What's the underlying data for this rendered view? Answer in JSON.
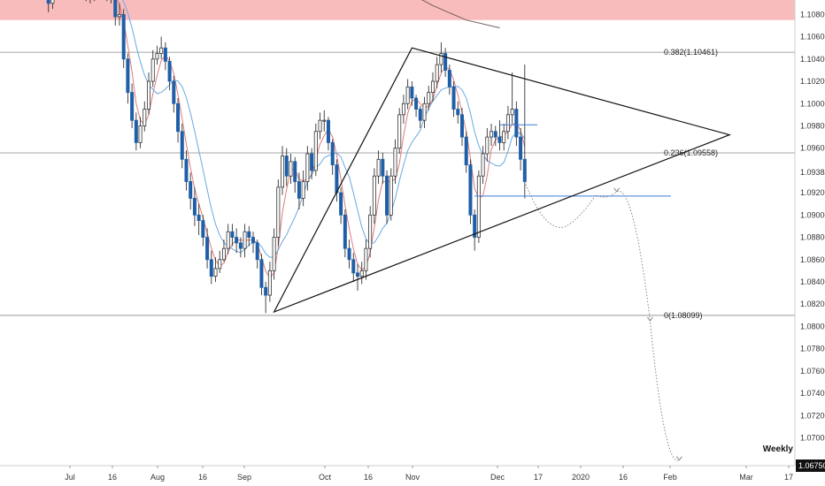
{
  "colors": {
    "bull_body": "#ffffff",
    "bear_body": "#1f5fa8",
    "wick": "#333333",
    "fast_ma": "#e07a7a",
    "slow_ma": "#6aa8e0",
    "long_ma": "#7a5a5a",
    "resistance_zone": "#f8bcbc",
    "fib_line": "#888888",
    "blue_line": "#3b7dd8",
    "triangle": "#111111",
    "projection": "#888888",
    "badge_bg": "#111111"
  },
  "chart_data": {
    "type": "candlestick",
    "timeframe_label": "Weekly",
    "current_price_label": "1.06750",
    "x_ticks": [
      "Jul",
      "16",
      "Aug",
      "16",
      "Sep",
      "Oct",
      "16",
      "Nov",
      "Dec",
      "17",
      "2020",
      "16",
      "Feb",
      "Mar",
      "17"
    ],
    "y_ticks": [
      "1.10800",
      "1.10600",
      "1.10400",
      "1.10200",
      "1.10000",
      "1.09800",
      "1.09600",
      "1.09384",
      "1.09200",
      "1.09000",
      "1.08800",
      "1.08600",
      "1.08400",
      "1.08200",
      "1.08000",
      "1.07800",
      "1.07600",
      "1.07400",
      "1.07200",
      "1.07000"
    ],
    "ylim": [
      1.0675,
      1.1093
    ],
    "fib_levels": [
      {
        "label": "0.382(1.10461)",
        "value": 1.10461
      },
      {
        "label": "0.236(1.09558)",
        "value": 1.09558
      },
      {
        "label": "0(1.08099)",
        "value": 1.08099
      }
    ],
    "resistance_zone": {
      "from": 1.1075,
      "to": 1.1093
    },
    "current_price": 1.0675,
    "horizontal_segments": [
      {
        "value": 1.0981,
        "x_from": 109,
        "x_to": 118
      },
      {
        "value": 1.0917,
        "x_from": 103,
        "x_to": 150
      }
    ],
    "triangle": [
      {
        "x": 55,
        "y": 1.0813
      },
      {
        "x": 88,
        "y": 1.105
      },
      {
        "x": 164,
        "y": 1.0972
      }
    ],
    "candles": {
      "x": [
        0,
        1,
        2,
        3,
        4,
        5,
        6,
        7,
        8,
        9,
        10,
        11,
        12,
        13,
        14,
        15,
        16,
        17,
        18,
        19,
        20,
        21,
        22,
        23,
        24,
        25,
        26,
        27,
        28,
        29,
        30,
        31,
        32,
        33,
        34,
        35,
        36,
        37,
        38,
        39,
        40,
        41,
        42,
        43,
        44,
        45,
        46,
        47,
        48,
        49,
        50,
        51,
        52,
        53,
        54,
        55,
        56,
        57,
        58,
        59,
        60,
        61,
        62,
        63,
        64,
        65,
        66,
        67,
        68,
        69,
        70,
        71,
        72,
        73,
        74,
        75,
        76,
        77,
        78,
        79,
        80,
        81,
        82,
        83,
        84,
        85,
        86,
        87,
        88,
        89,
        90,
        91,
        92,
        93,
        94,
        95,
        96,
        97,
        98,
        99,
        100,
        101,
        102,
        103,
        104,
        105,
        106,
        107,
        108,
        109,
        110,
        111,
        112,
        113,
        114,
        115
      ],
      "open": [
        1.112,
        1.1105,
        1.109,
        1.11,
        1.1115,
        1.111,
        1.1108,
        1.1112,
        1.112,
        1.1118,
        1.111,
        1.11,
        1.1098,
        1.1105,
        1.111,
        1.1112,
        1.11,
        1.1098,
        1.1078,
        1.108,
        1.104,
        1.101,
        1.0985,
        1.0965,
        1.098,
        1.0995,
        1.102,
        1.104,
        1.1045,
        1.105,
        1.1038,
        1.102,
        1.1,
        1.0975,
        1.095,
        1.093,
        1.0915,
        1.09,
        1.0895,
        1.088,
        1.086,
        1.0845,
        1.0852,
        1.086,
        1.087,
        1.0885,
        1.088,
        1.0875,
        1.087,
        1.0885,
        1.088,
        1.0875,
        1.086,
        1.0835,
        1.0828,
        1.085,
        1.088,
        1.0925,
        1.0953,
        1.0935,
        1.0948,
        1.093,
        1.0915,
        1.093,
        1.0955,
        1.094,
        1.0975,
        1.0985,
        1.0985,
        1.0965,
        1.0945,
        1.092,
        1.09,
        1.087,
        1.086,
        1.0848,
        1.0845,
        1.085,
        1.087,
        1.09,
        1.0935,
        1.095,
        1.0935,
        1.09,
        1.0935,
        1.096,
        1.099,
        1.1,
        1.1015,
        1.1005,
        1.0995,
        1.0985,
        1.1,
        1.101,
        1.102,
        1.1035,
        1.1045,
        1.103,
        1.1015,
        1.0995,
        1.099,
        1.097,
        1.0945,
        1.09,
        1.088,
        1.0935,
        1.0955,
        1.097,
        1.0975,
        1.097,
        1.0965,
        1.0975,
        1.099,
        1.0995,
        1.097,
        1.095
      ],
      "close": [
        1.1105,
        1.109,
        1.11,
        1.1115,
        1.111,
        1.1108,
        1.1112,
        1.112,
        1.1118,
        1.111,
        1.11,
        1.1098,
        1.1105,
        1.111,
        1.1112,
        1.11,
        1.1098,
        1.1078,
        1.108,
        1.104,
        1.101,
        1.0985,
        1.0965,
        1.098,
        1.0995,
        1.102,
        1.104,
        1.1045,
        1.105,
        1.1038,
        1.102,
        1.1,
        1.0975,
        1.095,
        1.093,
        1.0915,
        1.09,
        1.0895,
        1.088,
        1.086,
        1.0845,
        1.0852,
        1.086,
        1.087,
        1.0885,
        1.088,
        1.0875,
        1.087,
        1.0885,
        1.088,
        1.0875,
        1.086,
        1.0835,
        1.0828,
        1.085,
        1.088,
        1.0925,
        1.0953,
        1.0935,
        1.0948,
        1.093,
        1.0915,
        1.093,
        1.0955,
        1.094,
        1.0975,
        1.0985,
        1.0985,
        1.0965,
        1.0945,
        1.092,
        1.09,
        1.087,
        1.086,
        1.0848,
        1.0845,
        1.085,
        1.087,
        1.09,
        1.0935,
        1.095,
        1.0935,
        1.09,
        1.0935,
        1.096,
        1.099,
        1.1,
        1.1015,
        1.1005,
        1.0995,
        1.0985,
        1.1,
        1.101,
        1.102,
        1.1035,
        1.1045,
        1.103,
        1.1015,
        1.0995,
        1.099,
        1.097,
        1.0945,
        1.09,
        1.088,
        1.0935,
        1.0955,
        1.097,
        1.0975,
        1.097,
        1.0965,
        1.0975,
        1.099,
        1.0995,
        1.097,
        1.095,
        1.093
      ],
      "high": [
        1.113,
        1.1118,
        1.111,
        1.1125,
        1.1122,
        1.1118,
        1.112,
        1.113,
        1.1128,
        1.1122,
        1.1115,
        1.1108,
        1.1112,
        1.1118,
        1.112,
        1.1118,
        1.1108,
        1.1102,
        1.109,
        1.1085,
        1.1045,
        1.1018,
        1.0992,
        1.0988,
        1.1002,
        1.1028,
        1.1048,
        1.1052,
        1.106,
        1.1055,
        1.1042,
        1.1025,
        1.1005,
        1.0982,
        1.0958,
        1.0938,
        1.0925,
        1.091,
        1.09,
        1.0888,
        1.0868,
        1.0862,
        1.0868,
        1.0878,
        1.0892,
        1.0892,
        1.0888,
        1.088,
        1.0892,
        1.089,
        1.0885,
        1.0878,
        1.0865,
        1.084,
        1.0858,
        1.0888,
        1.0932,
        1.0962,
        1.096,
        1.0955,
        1.0952,
        1.0938,
        1.094,
        1.0962,
        1.096,
        1.0982,
        1.0992,
        1.0994,
        1.0988,
        1.0968,
        1.095,
        1.0925,
        1.0905,
        1.0878,
        1.0866,
        1.0856,
        1.0858,
        1.0878,
        1.0908,
        1.0942,
        1.0958,
        1.0956,
        1.094,
        1.0942,
        1.0968,
        1.0996,
        1.1008,
        1.1022,
        1.102,
        1.1008,
        1.0998,
        1.1006,
        1.1016,
        1.1028,
        1.1042,
        1.1055,
        1.105,
        1.1035,
        1.102,
        1.1002,
        1.0996,
        1.0975,
        1.095,
        1.0905,
        1.094,
        1.0962,
        1.0978,
        1.0982,
        1.098,
        1.0985,
        1.0982,
        1.0998,
        1.1028,
        1.1002,
        1.0978,
        1.1035
      ],
      "low": [
        1.1095,
        1.1082,
        1.1085,
        1.1095,
        1.1102,
        1.11,
        1.1102,
        1.1108,
        1.111,
        1.1102,
        1.1092,
        1.109,
        1.1092,
        1.11,
        1.1104,
        1.1092,
        1.109,
        1.107,
        1.107,
        1.1032,
        1.1,
        1.0978,
        1.0958,
        1.096,
        1.0975,
        1.099,
        1.1015,
        1.1035,
        1.104,
        1.103,
        1.1012,
        1.0992,
        1.0965,
        1.0942,
        1.0922,
        1.0905,
        1.089,
        1.0882,
        1.0872,
        1.0852,
        1.0838,
        1.084,
        1.0848,
        1.0858,
        1.0865,
        1.0872,
        1.0866,
        1.0862,
        1.0862,
        1.0872,
        1.0866,
        1.0852,
        1.0828,
        1.0812,
        1.0822,
        1.0842,
        1.0872,
        1.0918,
        1.0926,
        1.0928,
        1.092,
        1.0905,
        1.0908,
        1.0922,
        1.0932,
        1.0935,
        1.0968,
        1.0975,
        1.0958,
        1.0936,
        1.0912,
        1.0892,
        1.0862,
        1.0852,
        1.084,
        1.0832,
        1.0838,
        1.0842,
        1.0862,
        1.0892,
        1.0928,
        1.0928,
        1.0892,
        1.0895,
        1.0928,
        1.0955,
        1.0982,
        1.0995,
        1.0998,
        1.0988,
        1.0978,
        1.0978,
        1.0994,
        1.1002,
        1.1014,
        1.1028,
        1.1024,
        1.1008,
        1.0988,
        1.0982,
        1.0962,
        1.0938,
        1.0892,
        1.0868,
        1.0875,
        1.0928,
        1.0948,
        1.0962,
        1.0962,
        1.0958,
        1.0958,
        1.0968,
        1.0982,
        1.0962,
        1.094,
        1.0915
      ]
    },
    "projection_path": [
      {
        "x": 115,
        "y": 1.093
      },
      {
        "x": 125,
        "y": 1.089
      },
      {
        "x": 132,
        "y": 1.0918
      },
      {
        "x": 137,
        "y": 1.0921
      },
      {
        "x": 145,
        "y": 1.0805
      },
      {
        "x": 152,
        "y": 1.068
      }
    ]
  }
}
